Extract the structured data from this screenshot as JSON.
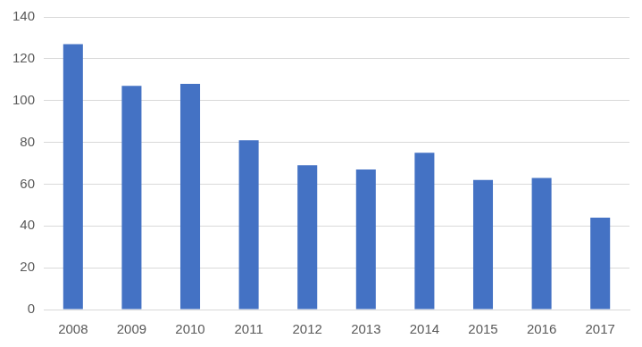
{
  "chart_data": {
    "type": "bar",
    "categories": [
      "2008",
      "2009",
      "2010",
      "2011",
      "2012",
      "2013",
      "2014",
      "2015",
      "2016",
      "2017"
    ],
    "values": [
      127,
      107,
      108,
      81,
      69,
      67,
      75,
      62,
      63,
      44
    ],
    "color": "#4472c4",
    "ylim": [
      0,
      140
    ],
    "yticks": [
      0,
      20,
      40,
      60,
      80,
      100,
      120,
      140
    ],
    "grid": true
  }
}
